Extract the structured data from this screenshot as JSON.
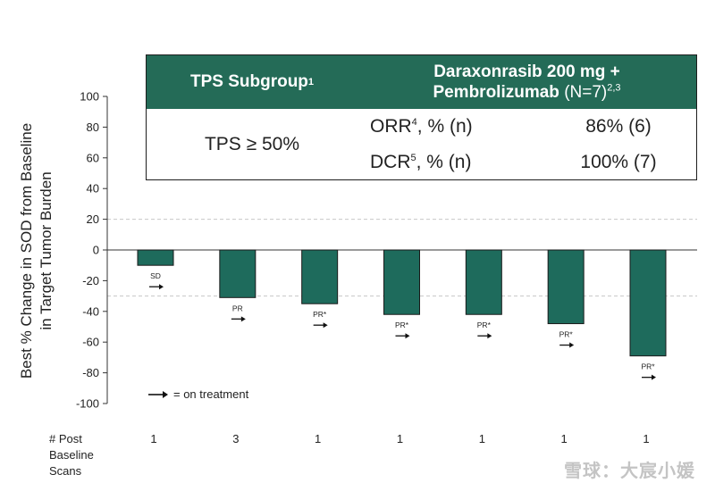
{
  "chart_data": {
    "type": "bar",
    "ylabel_line1": "Best % Change in SOD from Baseline",
    "ylabel_line2": "in Target Tumor Burden",
    "ylim": [
      -100,
      100
    ],
    "yticks": [
      100,
      80,
      60,
      40,
      20,
      0,
      -20,
      -40,
      -60,
      -80,
      -100
    ],
    "reference_lines": [
      20,
      -30
    ],
    "values": [
      -10,
      -31,
      -35,
      -42,
      -42,
      -48,
      -69
    ],
    "responses": [
      "SD",
      "PR",
      "PR*",
      "PR*",
      "PR*",
      "PR*",
      "PR*"
    ],
    "on_treatment": [
      true,
      true,
      true,
      true,
      true,
      true,
      true
    ],
    "post_baseline_scans": [
      "1",
      "3",
      "1",
      "1",
      "1",
      "1",
      "1"
    ],
    "bar_color": "#1e6b5c",
    "legend": {
      "arrow_label": "= on treatment"
    },
    "scans_label": [
      "# Post",
      "Baseline",
      "Scans"
    ]
  },
  "table": {
    "header_left": "TPS Subgroup",
    "header_left_sup": "1",
    "header_right_line1": "Daraxonrasib 200 mg +",
    "header_right_line2_bold": "Pembrolizumab",
    "header_right_line2_normal": " (N=7)",
    "header_right_sup": "2,3",
    "subgroup": "TPS ≥ 50%",
    "rows": [
      {
        "label": "ORR",
        "sup": "4",
        "suffix": ", % (n)",
        "value": "86% (6)"
      },
      {
        "label": "DCR",
        "sup": "5",
        "suffix": ",  % (n)",
        "value": "100% (7)"
      }
    ],
    "header_color": "#246b57"
  },
  "watermark": "雪球：大宸小媛"
}
